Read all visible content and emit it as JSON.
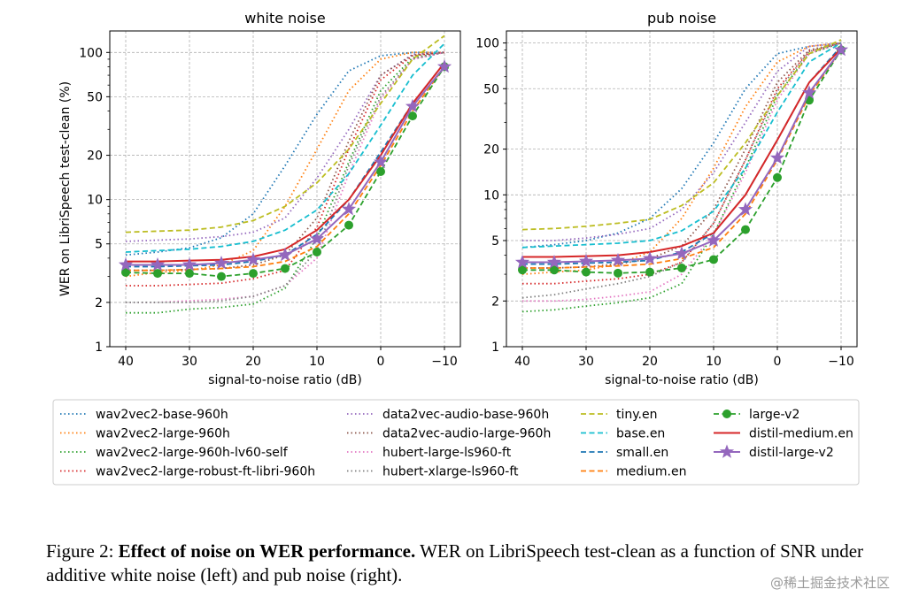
{
  "chart_data": [
    {
      "type": "line",
      "title": "white noise",
      "xlabel": "signal-to-noise ratio (dB)",
      "ylabel": "WER on LibriSpeech test-clean (%)",
      "x": [
        40,
        35,
        30,
        25,
        20,
        15,
        10,
        5,
        0,
        -5,
        -10
      ],
      "xticks": [
        "40",
        "30",
        "20",
        "10",
        "0",
        "−10"
      ],
      "yscale": "log",
      "ylim": [
        1,
        140
      ],
      "yticks": [
        "1",
        "2",
        "5",
        "10",
        "20",
        "50",
        "100"
      ],
      "grid": true,
      "series": [
        {
          "name": "wav2vec2-base-960h",
          "color": "#1f77b4",
          "style": "dotted",
          "values": [
            4.2,
            4.4,
            4.7,
            5.5,
            8.0,
            17,
            38,
            75,
            95,
            100,
            100
          ]
        },
        {
          "name": "wav2vec2-large-960h",
          "color": "#ff7f0e",
          "style": "dotted",
          "values": [
            3.0,
            3.2,
            3.3,
            3.6,
            4.5,
            9,
            22,
            55,
            90,
            100,
            100
          ]
        },
        {
          "name": "wav2vec2-large-960h-lv60-self",
          "color": "#2ca02c",
          "style": "dotted",
          "values": [
            1.7,
            1.7,
            1.8,
            1.85,
            1.95,
            2.5,
            5.5,
            18,
            55,
            92,
            100
          ]
        },
        {
          "name": "wav2vec2-large-robust-ft-libri-960h",
          "color": "#d62728",
          "style": "dotted",
          "values": [
            2.6,
            2.6,
            2.65,
            2.7,
            2.9,
            3.3,
            6.5,
            22,
            65,
            95,
            100
          ]
        },
        {
          "name": "data2vec-audio-base-960h",
          "color": "#9467bd",
          "style": "dotted",
          "values": [
            5.2,
            5.3,
            5.4,
            5.6,
            6.0,
            7.5,
            14,
            30,
            70,
            97,
            100
          ]
        },
        {
          "name": "data2vec-audio-large-960h",
          "color": "#8c564b",
          "style": "dotted",
          "values": [
            3.3,
            3.3,
            3.35,
            3.4,
            3.6,
            4.2,
            7.5,
            25,
            70,
            96,
            100
          ]
        },
        {
          "name": "hubert-large-ls960-ft",
          "color": "#e377c2",
          "style": "dotted",
          "values": [
            2.0,
            2.0,
            2.05,
            2.1,
            2.2,
            2.6,
            4.0,
            15,
            48,
            90,
            100
          ]
        },
        {
          "name": "hubert-xlarge-ls960-ft",
          "color": "#7f7f7f",
          "style": "dotted",
          "values": [
            2.0,
            2.0,
            2.0,
            2.05,
            2.2,
            2.6,
            4.5,
            17,
            50,
            90,
            100
          ]
        },
        {
          "name": "tiny.en",
          "color": "#bcbd22",
          "style": "dashed",
          "values": [
            6.0,
            6.1,
            6.2,
            6.5,
            7.2,
            9.0,
            13,
            22,
            45,
            90,
            130
          ]
        },
        {
          "name": "base.en",
          "color": "#17becf",
          "style": "dashed",
          "values": [
            4.4,
            4.5,
            4.6,
            4.8,
            5.2,
            6.2,
            8.5,
            15,
            32,
            70,
            115
          ]
        },
        {
          "name": "small.en",
          "color": "#1f77b4",
          "style": "dashed",
          "values": [
            3.5,
            3.5,
            3.55,
            3.6,
            3.8,
            4.2,
            5.8,
            10,
            21,
            45,
            85
          ]
        },
        {
          "name": "medium.en",
          "color": "#ff7f0e",
          "style": "dashed",
          "values": [
            3.3,
            3.3,
            3.35,
            3.4,
            3.5,
            3.8,
            4.8,
            8,
            17,
            40,
            80
          ]
        },
        {
          "name": "large-v2",
          "color": "#2ca02c",
          "style": "dashed",
          "marker": "circle",
          "values": [
            3.2,
            3.15,
            3.15,
            3.0,
            3.15,
            3.4,
            4.4,
            6.7,
            15.5,
            37,
            80
          ]
        },
        {
          "name": "distil-medium.en",
          "color": "#d62728",
          "style": "solid",
          "values": [
            3.8,
            3.8,
            3.85,
            3.9,
            4.1,
            4.6,
            6.2,
            10,
            20,
            45,
            85
          ]
        },
        {
          "name": "distil-large-v2",
          "color": "#9467bd",
          "style": "solid",
          "marker": "star",
          "values": [
            3.6,
            3.6,
            3.6,
            3.7,
            3.9,
            4.2,
            5.4,
            8.6,
            18,
            43,
            80
          ]
        }
      ]
    },
    {
      "type": "line",
      "title": "pub noise",
      "xlabel": "signal-to-noise ratio (dB)",
      "ylabel": "",
      "x": [
        40,
        35,
        30,
        25,
        20,
        15,
        10,
        5,
        0,
        -5,
        -10
      ],
      "xticks": [
        "40",
        "30",
        "20",
        "10",
        "0",
        "−10"
      ],
      "yscale": "log",
      "ylim": [
        1,
        120
      ],
      "yticks": [
        "1",
        "2",
        "5",
        "10",
        "20",
        "50",
        "100"
      ],
      "grid": true,
      "series": [
        {
          "name": "wav2vec2-base-960h",
          "color": "#1f77b4",
          "style": "dotted",
          "values": [
            4.5,
            4.7,
            5.0,
            5.6,
            7.0,
            11,
            22,
            50,
            85,
            95,
            100
          ]
        },
        {
          "name": "wav2vec2-large-960h",
          "color": "#ff7f0e",
          "style": "dotted",
          "values": [
            3.0,
            3.1,
            3.2,
            3.5,
            4.2,
            7,
            15,
            38,
            75,
            95,
            100
          ]
        },
        {
          "name": "wav2vec2-large-960h-lv60-self",
          "color": "#2ca02c",
          "style": "dotted",
          "values": [
            1.7,
            1.75,
            1.85,
            1.95,
            2.1,
            2.6,
            5.5,
            15,
            45,
            85,
            100
          ]
        },
        {
          "name": "wav2vec2-large-robust-ft-libri-960h",
          "color": "#d62728",
          "style": "dotted",
          "values": [
            2.6,
            2.6,
            2.7,
            2.8,
            3.0,
            3.6,
            6.5,
            17,
            50,
            88,
            100
          ]
        },
        {
          "name": "data2vec-audio-base-960h",
          "color": "#9467bd",
          "style": "dotted",
          "values": [
            5.0,
            5.0,
            5.2,
            5.5,
            6.0,
            8.0,
            14,
            30,
            65,
            95,
            100
          ]
        },
        {
          "name": "data2vec-audio-large-960h",
          "color": "#8c564b",
          "style": "dotted",
          "values": [
            3.3,
            3.3,
            3.35,
            3.5,
            3.8,
            4.6,
            8,
            20,
            55,
            90,
            100
          ]
        },
        {
          "name": "hubert-large-ls960-ft",
          "color": "#e377c2",
          "style": "dotted",
          "values": [
            2.0,
            2.0,
            2.05,
            2.15,
            2.3,
            3.0,
            5.5,
            14,
            42,
            85,
            100
          ]
        },
        {
          "name": "hubert-xlarge-ls960-ft",
          "color": "#7f7f7f",
          "style": "dotted",
          "values": [
            2.1,
            2.2,
            2.4,
            2.6,
            2.9,
            3.6,
            6.5,
            17,
            48,
            88,
            100
          ]
        },
        {
          "name": "tiny.en",
          "color": "#bcbd22",
          "style": "dashed",
          "values": [
            5.9,
            6.0,
            6.2,
            6.5,
            6.9,
            8.5,
            12,
            22,
            45,
            85,
            105
          ]
        },
        {
          "name": "base.en",
          "color": "#17becf",
          "style": "dashed",
          "values": [
            4.5,
            4.6,
            4.7,
            4.8,
            5.0,
            5.8,
            7.8,
            15,
            35,
            75,
            100
          ]
        },
        {
          "name": "small.en",
          "color": "#1f77b4",
          "style": "dashed",
          "values": [
            3.5,
            3.5,
            3.55,
            3.6,
            3.7,
            4.2,
            5.6,
            10,
            23,
            55,
            95
          ]
        },
        {
          "name": "medium.en",
          "color": "#ff7f0e",
          "style": "dashed",
          "values": [
            3.3,
            3.3,
            3.35,
            3.4,
            3.5,
            3.8,
            4.5,
            7.5,
            17,
            45,
            90
          ]
        },
        {
          "name": "large-v2",
          "color": "#2ca02c",
          "style": "dashed",
          "marker": "circle",
          "values": [
            3.2,
            3.2,
            3.1,
            3.05,
            3.1,
            3.3,
            3.75,
            5.9,
            13,
            42,
            90
          ]
        },
        {
          "name": "distil-medium.en",
          "color": "#d62728",
          "style": "solid",
          "values": [
            3.9,
            3.9,
            3.95,
            4.0,
            4.2,
            4.6,
            5.6,
            10,
            23,
            55,
            92
          ]
        },
        {
          "name": "distil-large-v2",
          "color": "#9467bd",
          "style": "solid",
          "marker": "star",
          "values": [
            3.6,
            3.6,
            3.65,
            3.7,
            3.8,
            4.1,
            5.0,
            8.0,
            17.5,
            47,
            90
          ]
        }
      ]
    }
  ],
  "legend": [
    [
      {
        "label": "wav2vec2-base-960h",
        "color": "#1f77b4",
        "style": "dotted"
      },
      {
        "label": "wav2vec2-large-960h",
        "color": "#ff7f0e",
        "style": "dotted"
      },
      {
        "label": "wav2vec2-large-960h-lv60-self",
        "color": "#2ca02c",
        "style": "dotted"
      },
      {
        "label": "wav2vec2-large-robust-ft-libri-960h",
        "color": "#d62728",
        "style": "dotted"
      }
    ],
    [
      {
        "label": "data2vec-audio-base-960h",
        "color": "#9467bd",
        "style": "dotted"
      },
      {
        "label": "data2vec-audio-large-960h",
        "color": "#8c564b",
        "style": "dotted"
      },
      {
        "label": "hubert-large-ls960-ft",
        "color": "#e377c2",
        "style": "dotted"
      },
      {
        "label": "hubert-xlarge-ls960-ft",
        "color": "#7f7f7f",
        "style": "dotted"
      }
    ],
    [
      {
        "label": "tiny.en",
        "color": "#bcbd22",
        "style": "dashed"
      },
      {
        "label": "base.en",
        "color": "#17becf",
        "style": "dashed"
      },
      {
        "label": "small.en",
        "color": "#1f77b4",
        "style": "dashed"
      },
      {
        "label": "medium.en",
        "color": "#ff7f0e",
        "style": "dashed"
      }
    ],
    [
      {
        "label": "large-v2",
        "color": "#2ca02c",
        "style": "dashed",
        "marker": "circle"
      },
      {
        "label": "distil-medium.en",
        "color": "#d62728",
        "style": "solid"
      },
      {
        "label": "distil-large-v2",
        "color": "#9467bd",
        "style": "solid",
        "marker": "star"
      }
    ]
  ],
  "caption": {
    "prefix": "Figure 2: ",
    "bold": "Effect of noise on WER performance.",
    "rest": " WER on LibriSpeech test-clean as a function of SNR under additive white noise (left) and pub noise (right)."
  },
  "watermark": "@稀土掘金技术社区"
}
